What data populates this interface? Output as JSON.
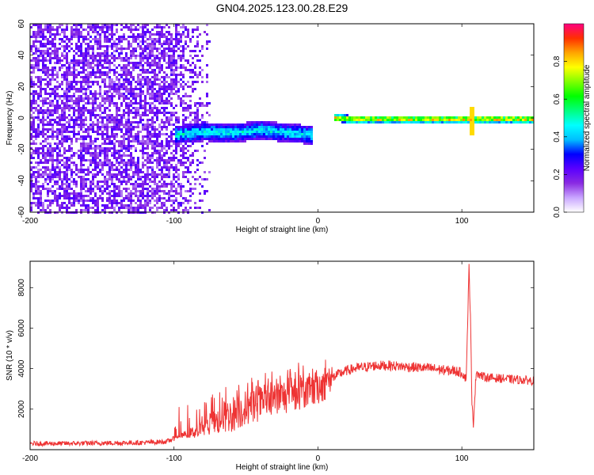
{
  "title": "GN04.2025.123.00.28.E29",
  "chart_data": [
    {
      "type": "heatmap",
      "xlabel": "Height of straight line (km)",
      "ylabel": "Frequency (Hz)",
      "xlim": [
        -200,
        150
      ],
      "ylim": [
        -60,
        60
      ],
      "xticks": [
        -200,
        -100,
        0,
        100
      ],
      "yticks": [
        60,
        40,
        20,
        0,
        -20,
        -40,
        -60
      ],
      "colorbar": {
        "label": "Normalized spectral amplitude",
        "range": [
          0,
          1
        ],
        "ticks": [
          0.0,
          0.2,
          0.4,
          0.6,
          0.8
        ],
        "colors": [
          "#ffffff",
          "#c9a6ff",
          "#8a2be2",
          "#5a00ff",
          "#0000ff",
          "#00bfff",
          "#00ffff",
          "#00ff80",
          "#00ff00",
          "#80ff00",
          "#ffff00",
          "#ffa500",
          "#ff3000",
          "#ff0080"
        ]
      },
      "features": [
        {
          "name": "broadband noise region",
          "x_range": [
            -200,
            -75
          ],
          "level": 0.1
        },
        {
          "name": "signal track",
          "x": [
            -100,
            -80,
            -60,
            -40,
            -20,
            -5
          ],
          "y": [
            -10,
            -8,
            -9,
            -7,
            -9,
            -10
          ],
          "level": 0.5
        },
        {
          "name": "signal track",
          "x": [
            10,
            20,
            50,
            100,
            150
          ],
          "y": [
            1,
            0,
            0,
            0,
            0
          ],
          "level": 0.9
        },
        {
          "name": "spike",
          "x": 106,
          "y_range": [
            -10,
            8
          ],
          "level": 0.8
        }
      ]
    },
    {
      "type": "line",
      "xlabel": "Height of straight line (km)",
      "ylabel": "SNR (10 * v/v)",
      "xlim": [
        -200,
        150
      ],
      "ylim": [
        0,
        9300
      ],
      "xticks": [
        -200,
        -100,
        0,
        100
      ],
      "yticks": [
        2000,
        4000,
        6000,
        8000
      ],
      "series": [
        {
          "color": "#ee3333",
          "x": [
            -200,
            -180,
            -160,
            -140,
            -120,
            -105,
            -95,
            -85,
            -75,
            -65,
            -55,
            -45,
            -35,
            -25,
            -15,
            -5,
            0,
            5,
            10,
            15,
            20,
            25,
            30,
            35,
            40,
            50,
            60,
            70,
            80,
            90,
            95,
            100,
            103,
            105,
            106,
            107,
            108,
            110,
            112,
            115,
            120,
            130,
            140,
            150
          ],
          "y": [
            300,
            300,
            320,
            330,
            350,
            400,
            700,
            900,
            1200,
            1600,
            1900,
            2200,
            2400,
            2600,
            2800,
            2900,
            3100,
            3300,
            3550,
            3750,
            3900,
            4000,
            4050,
            4100,
            4150,
            4150,
            4100,
            4050,
            4000,
            3900,
            3900,
            3800,
            3500,
            9000,
            6500,
            2200,
            1300,
            3900,
            3700,
            3600,
            3550,
            3500,
            3450,
            3400
          ]
        }
      ]
    }
  ]
}
